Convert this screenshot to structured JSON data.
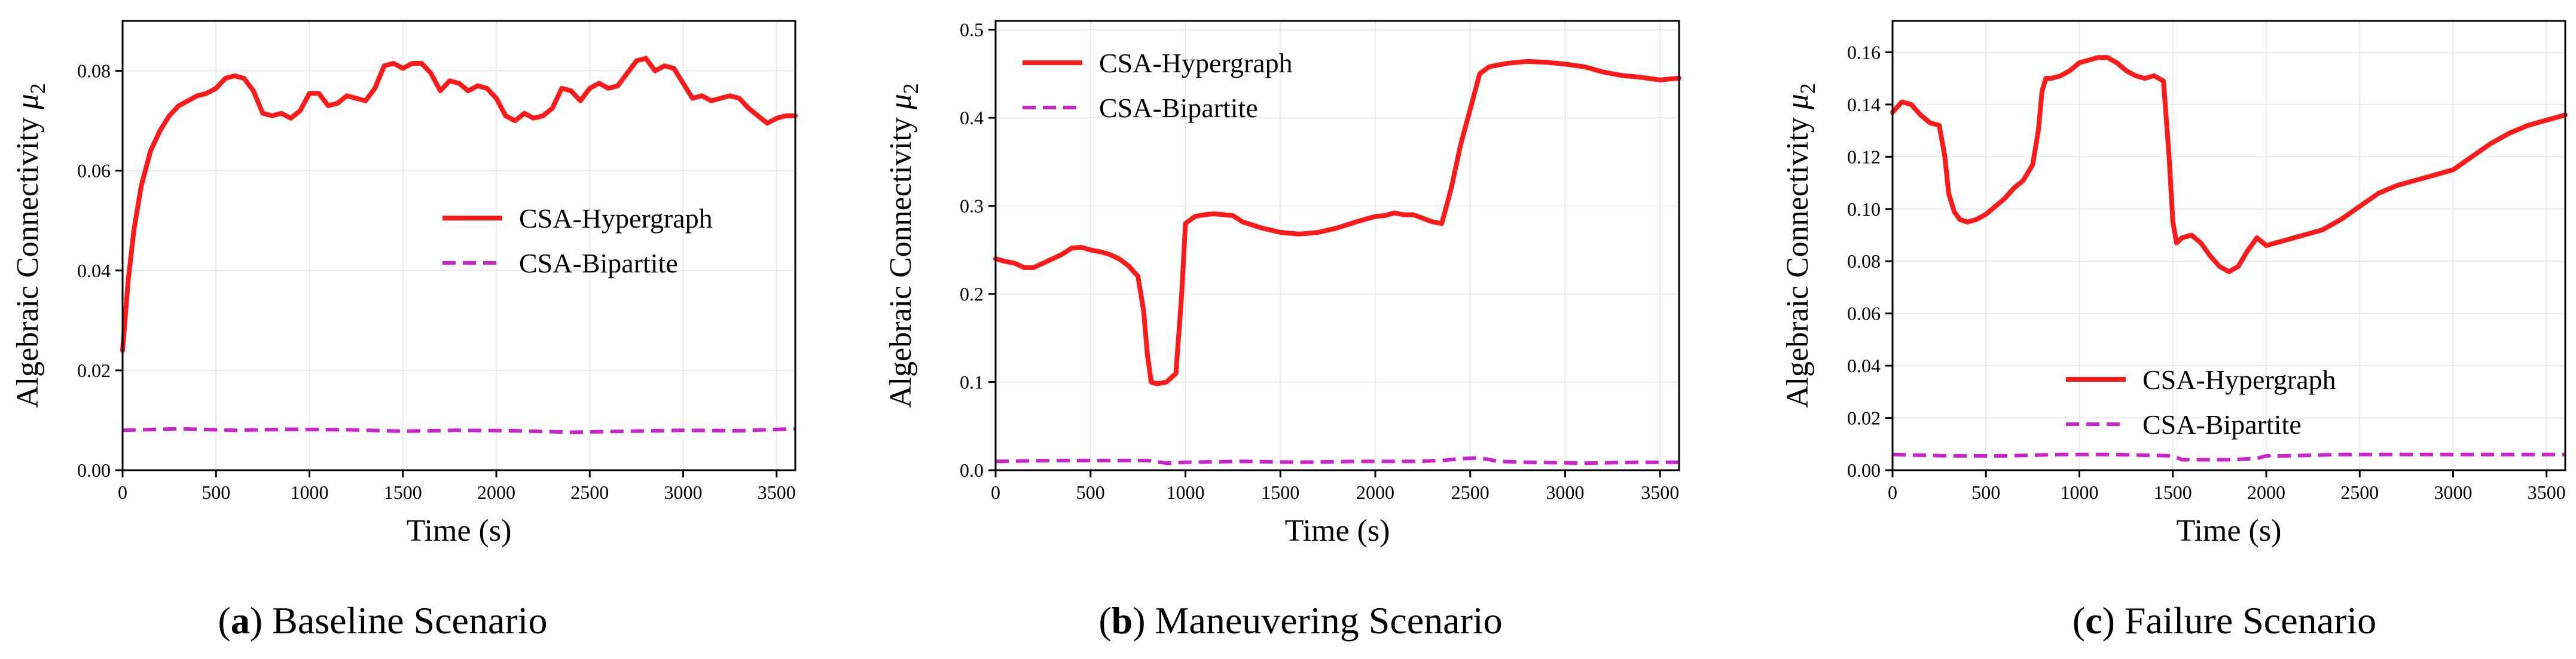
{
  "chart_data": [
    {
      "type": "line",
      "id": "a",
      "caption_letter": "a",
      "caption_text": "Baseline Scenario",
      "xlabel": "Time (s)",
      "ylabel_main": "Algebraic Connectivity ",
      "ylabel_symbol": "μ",
      "ylabel_sub": "2",
      "xlim": [
        0,
        3600
      ],
      "ylim": [
        0,
        0.09
      ],
      "xticks": [
        0,
        500,
        1000,
        1500,
        2000,
        2500,
        3000,
        3500
      ],
      "xtick_labels": [
        "0",
        "500",
        "1000",
        "1500",
        "2000",
        "2500",
        "3000",
        "3500"
      ],
      "yticks": [
        0,
        0.02,
        0.04,
        0.06,
        0.08
      ],
      "ytick_labels": [
        "0.00",
        "0.02",
        "0.04",
        "0.06",
        "0.08"
      ],
      "grid": true,
      "legend_position": "center-right",
      "series": [
        {
          "name": "CSA-Hypergraph",
          "color": "#ff1a1a",
          "style": "solid",
          "x": [
            0,
            30,
            60,
            100,
            150,
            200,
            250,
            300,
            350,
            400,
            450,
            500,
            550,
            600,
            650,
            700,
            750,
            800,
            850,
            900,
            950,
            1000,
            1050,
            1100,
            1150,
            1200,
            1250,
            1300,
            1350,
            1400,
            1450,
            1500,
            1550,
            1600,
            1650,
            1700,
            1750,
            1800,
            1850,
            1900,
            1950,
            2000,
            2050,
            2100,
            2150,
            2200,
            2250,
            2300,
            2350,
            2400,
            2450,
            2500,
            2550,
            2600,
            2650,
            2700,
            2750,
            2800,
            2850,
            2900,
            2950,
            3000,
            3050,
            3100,
            3150,
            3200,
            3250,
            3300,
            3350,
            3400,
            3450,
            3500,
            3550,
            3600
          ],
          "values": [
            0.024,
            0.038,
            0.048,
            0.057,
            0.064,
            0.068,
            0.071,
            0.073,
            0.074,
            0.075,
            0.0755,
            0.0765,
            0.0785,
            0.079,
            0.0785,
            0.076,
            0.0715,
            0.071,
            0.0715,
            0.0705,
            0.072,
            0.0755,
            0.0755,
            0.073,
            0.0735,
            0.075,
            0.0745,
            0.074,
            0.0765,
            0.081,
            0.0815,
            0.0805,
            0.0815,
            0.0815,
            0.0795,
            0.076,
            0.078,
            0.0775,
            0.076,
            0.077,
            0.0765,
            0.0745,
            0.071,
            0.07,
            0.0715,
            0.0705,
            0.071,
            0.0725,
            0.0765,
            0.076,
            0.074,
            0.0765,
            0.0775,
            0.0765,
            0.077,
            0.0795,
            0.082,
            0.0825,
            0.08,
            0.081,
            0.0805,
            0.0775,
            0.0745,
            0.075,
            0.074,
            0.0745,
            0.075,
            0.0745,
            0.0725,
            0.071,
            0.0695,
            0.0705,
            0.071,
            0.071
          ]
        },
        {
          "name": "CSA-Bipartite",
          "color": "#cc22cc",
          "style": "dashed",
          "x": [
            0,
            300,
            600,
            900,
            1200,
            1500,
            1800,
            2100,
            2400,
            2700,
            3000,
            3300,
            3600
          ],
          "values": [
            0.008,
            0.0083,
            0.008,
            0.0082,
            0.0081,
            0.0078,
            0.008,
            0.0079,
            0.0076,
            0.0078,
            0.008,
            0.0079,
            0.0083
          ]
        }
      ]
    },
    {
      "type": "line",
      "id": "b",
      "caption_letter": "b",
      "caption_text": "Maneuvering Scenario",
      "xlabel": "Time (s)",
      "ylabel_main": "Algebraic Connectivity ",
      "ylabel_symbol": "μ",
      "ylabel_sub": "2",
      "xlim": [
        0,
        3600
      ],
      "ylim": [
        0,
        0.51
      ],
      "xticks": [
        0,
        500,
        1000,
        1500,
        2000,
        2500,
        3000,
        3500
      ],
      "xtick_labels": [
        "0",
        "500",
        "1000",
        "1500",
        "2000",
        "2500",
        "3000",
        "3500"
      ],
      "yticks": [
        0,
        0.1,
        0.2,
        0.3,
        0.4,
        0.5
      ],
      "ytick_labels": [
        "0.0",
        "0.1",
        "0.2",
        "0.3",
        "0.4",
        "0.5"
      ],
      "grid": true,
      "legend_position": "top-left",
      "series": [
        {
          "name": "CSA-Hypergraph",
          "color": "#ff1a1a",
          "style": "solid",
          "x": [
            0,
            50,
            100,
            150,
            200,
            250,
            300,
            350,
            400,
            450,
            500,
            550,
            600,
            650,
            700,
            750,
            780,
            800,
            820,
            850,
            900,
            950,
            980,
            1000,
            1050,
            1100,
            1150,
            1200,
            1250,
            1300,
            1400,
            1500,
            1600,
            1700,
            1800,
            1900,
            2000,
            2050,
            2100,
            2150,
            2200,
            2250,
            2300,
            2350,
            2400,
            2450,
            2500,
            2550,
            2600,
            2650,
            2700,
            2800,
            2900,
            3000,
            3100,
            3200,
            3300,
            3400,
            3500,
            3600
          ],
          "values": [
            0.24,
            0.237,
            0.235,
            0.23,
            0.23,
            0.235,
            0.24,
            0.245,
            0.252,
            0.253,
            0.25,
            0.248,
            0.245,
            0.24,
            0.232,
            0.22,
            0.18,
            0.13,
            0.1,
            0.098,
            0.1,
            0.11,
            0.2,
            0.28,
            0.288,
            0.29,
            0.291,
            0.29,
            0.289,
            0.282,
            0.275,
            0.27,
            0.268,
            0.27,
            0.275,
            0.282,
            0.288,
            0.289,
            0.292,
            0.29,
            0.29,
            0.286,
            0.282,
            0.28,
            0.32,
            0.37,
            0.41,
            0.45,
            0.458,
            0.46,
            0.462,
            0.464,
            0.463,
            0.461,
            0.458,
            0.452,
            0.448,
            0.446,
            0.443,
            0.445
          ]
        },
        {
          "name": "CSA-Bipartite",
          "color": "#cc22cc",
          "style": "dashed",
          "x": [
            0,
            300,
            600,
            800,
            900,
            1000,
            1300,
            1600,
            1900,
            2200,
            2350,
            2450,
            2550,
            2650,
            2800,
            3100,
            3400,
            3600
          ],
          "values": [
            0.01,
            0.011,
            0.011,
            0.011,
            0.008,
            0.009,
            0.01,
            0.009,
            0.01,
            0.01,
            0.011,
            0.013,
            0.014,
            0.01,
            0.009,
            0.008,
            0.009,
            0.009
          ]
        }
      ]
    },
    {
      "type": "line",
      "id": "c",
      "caption_letter": "c",
      "caption_text": "Failure Scenario",
      "xlabel": "Time (s)",
      "ylabel_main": "Algebraic Connectivity ",
      "ylabel_symbol": "μ",
      "ylabel_sub": "2",
      "xlim": [
        0,
        3600
      ],
      "ylim": [
        0,
        0.172
      ],
      "xticks": [
        0,
        500,
        1000,
        1500,
        2000,
        2500,
        3000,
        3500
      ],
      "xtick_labels": [
        "0",
        "500",
        "1000",
        "1500",
        "2000",
        "2500",
        "3000",
        "3500"
      ],
      "yticks": [
        0,
        0.02,
        0.04,
        0.06,
        0.08,
        0.1,
        0.12,
        0.14,
        0.16
      ],
      "ytick_labels": [
        "0.00",
        "0.02",
        "0.04",
        "0.06",
        "0.08",
        "0.10",
        "0.12",
        "0.14",
        "0.16"
      ],
      "grid": true,
      "legend_position": "bottom-center",
      "series": [
        {
          "name": "CSA-Hypergraph",
          "color": "#ff1a1a",
          "style": "solid",
          "x": [
            0,
            50,
            100,
            150,
            200,
            250,
            280,
            300,
            330,
            360,
            400,
            450,
            500,
            550,
            600,
            650,
            700,
            750,
            780,
            800,
            820,
            850,
            900,
            950,
            1000,
            1050,
            1100,
            1150,
            1200,
            1250,
            1300,
            1350,
            1400,
            1450,
            1480,
            1500,
            1520,
            1550,
            1600,
            1650,
            1700,
            1750,
            1800,
            1850,
            1900,
            1950,
            2000,
            2050,
            2100,
            2150,
            2200,
            2300,
            2400,
            2500,
            2600,
            2700,
            2800,
            2900,
            3000,
            3100,
            3200,
            3300,
            3400,
            3500,
            3600
          ],
          "values": [
            0.137,
            0.141,
            0.14,
            0.136,
            0.133,
            0.132,
            0.12,
            0.106,
            0.099,
            0.096,
            0.095,
            0.096,
            0.098,
            0.101,
            0.104,
            0.108,
            0.111,
            0.117,
            0.13,
            0.145,
            0.15,
            0.15,
            0.151,
            0.153,
            0.156,
            0.157,
            0.158,
            0.158,
            0.156,
            0.153,
            0.151,
            0.15,
            0.151,
            0.149,
            0.12,
            0.095,
            0.087,
            0.089,
            0.09,
            0.087,
            0.082,
            0.078,
            0.076,
            0.078,
            0.084,
            0.089,
            0.086,
            0.087,
            0.088,
            0.089,
            0.09,
            0.092,
            0.096,
            0.101,
            0.106,
            0.109,
            0.111,
            0.113,
            0.115,
            0.12,
            0.125,
            0.129,
            0.132,
            0.134,
            0.136
          ]
        },
        {
          "name": "CSA-Bipartite",
          "color": "#cc22cc",
          "style": "dashed",
          "x": [
            0,
            300,
            600,
            900,
            1200,
            1500,
            1550,
            1800,
            1950,
            2000,
            2100,
            2400,
            2700,
            3000,
            3300,
            3600
          ],
          "values": [
            0.006,
            0.0055,
            0.0055,
            0.006,
            0.006,
            0.0055,
            0.004,
            0.004,
            0.0045,
            0.0055,
            0.0055,
            0.006,
            0.006,
            0.006,
            0.006,
            0.006
          ]
        }
      ]
    }
  ]
}
